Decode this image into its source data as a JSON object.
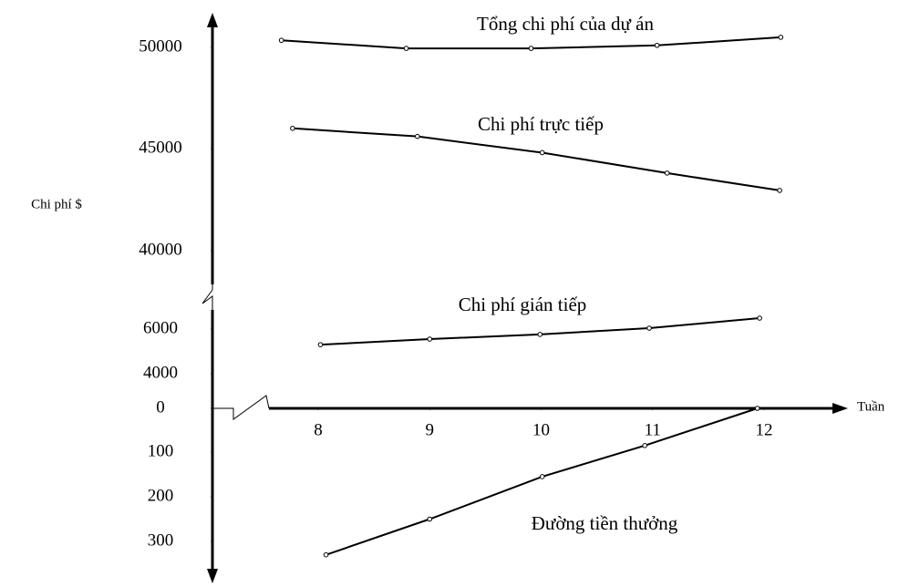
{
  "chart_data": {
    "type": "line",
    "ylabel": "Chi phí $",
    "xlabel": "Tuần",
    "xticks": [
      8,
      9,
      10,
      11,
      12
    ],
    "yticks": [
      50000,
      45000,
      40000,
      6000,
      4000,
      0,
      {
        "value": -100,
        "label": "100"
      },
      {
        "value": -200,
        "label": "200"
      },
      {
        "value": -300,
        "label": "300"
      }
    ],
    "series": [
      {
        "name": "Tổng chi phí của dự án",
        "color": "#000000",
        "x": [
          7.67,
          8.79,
          9.91,
          11.04,
          12.15
        ],
        "values": [
          50350,
          49950,
          49950,
          50100,
          50500
        ]
      },
      {
        "name": "Chi phí trực tiếp",
        "color": "#000000",
        "x": [
          7.77,
          8.89,
          10.01,
          11.13,
          12.14
        ],
        "values": [
          46000,
          45600,
          44800,
          43800,
          42950
        ]
      },
      {
        "name": "Chi phí gián tiếp",
        "color": "#000000",
        "x": [
          8.02,
          9.0,
          9.99,
          10.97,
          11.96
        ],
        "values": [
          5300,
          5550,
          5760,
          6040,
          6490
        ]
      },
      {
        "name": "Đường tiền thưởng",
        "color": "#000000",
        "x": [
          8.07,
          9.0,
          10.01,
          10.93,
          11.94
        ],
        "values": [
          -330,
          -250,
          -155,
          -85,
          0
        ]
      }
    ]
  }
}
